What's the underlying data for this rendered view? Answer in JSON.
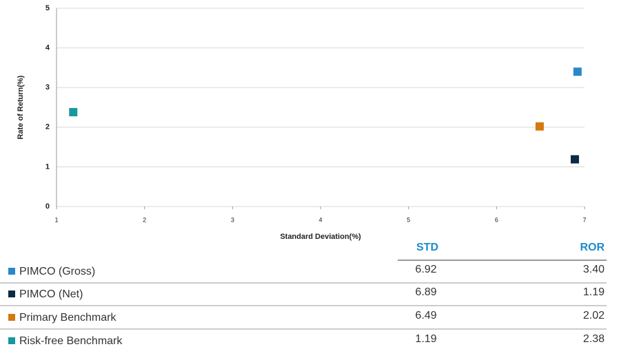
{
  "chart_data": {
    "type": "scatter",
    "xlabel": "Standard Deviation(%)",
    "ylabel": "Rate of Return(%)",
    "xlim": [
      1,
      7
    ],
    "xticks": [
      1,
      2,
      3,
      4,
      5,
      6,
      7
    ],
    "ylim": [
      0,
      5
    ],
    "yticks": [
      0,
      1,
      2,
      3,
      4,
      5
    ],
    "grid": true,
    "series": [
      {
        "name": "PIMCO (Gross)",
        "color": "#2a88c9",
        "x": [
          6.92
        ],
        "values": [
          3.4
        ]
      },
      {
        "name": "PIMCO (Net)",
        "color": "#0d2a44",
        "x": [
          6.89
        ],
        "values": [
          1.19
        ]
      },
      {
        "name": "Primary Benchmark",
        "color": "#d4790f",
        "x": [
          6.49
        ],
        "values": [
          2.02
        ]
      },
      {
        "name": "Risk-free Benchmark",
        "color": "#16989c",
        "x": [
          1.19
        ],
        "values": [
          2.38
        ]
      }
    ]
  },
  "table": {
    "columns": [
      "STD",
      "ROR"
    ],
    "rows": [
      [
        "6.92",
        "3.40"
      ],
      [
        "6.89",
        "1.19"
      ],
      [
        "6.49",
        "2.02"
      ],
      [
        "1.19",
        "2.38"
      ]
    ]
  }
}
